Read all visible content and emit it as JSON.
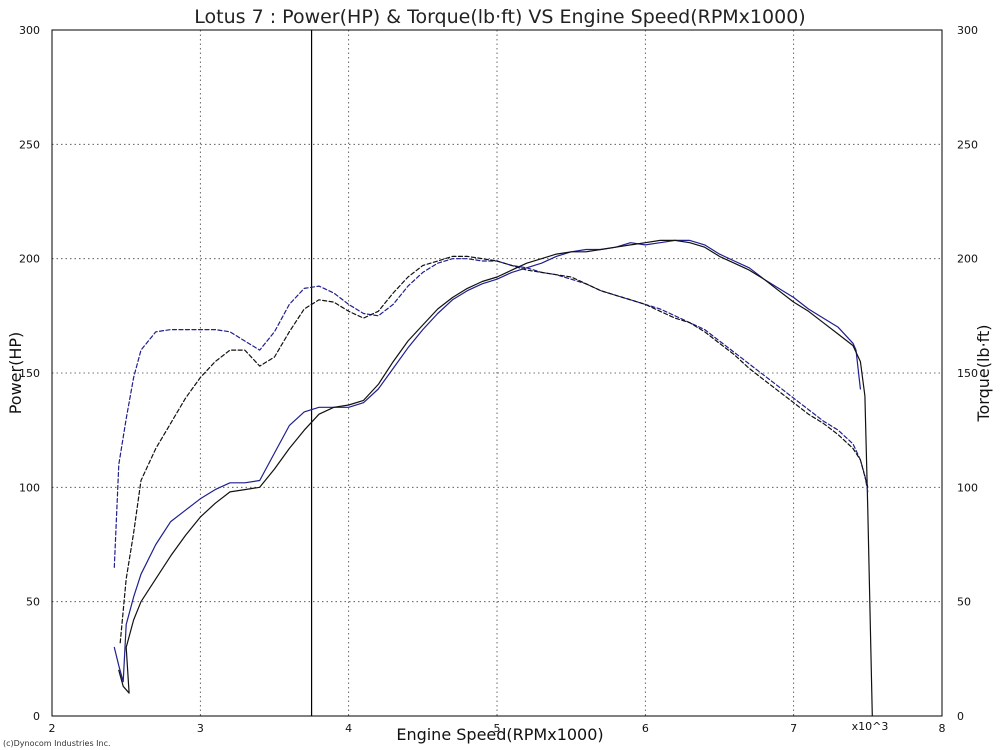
{
  "chart_data": {
    "type": "line",
    "title": "Lotus 7  : Power(HP) & Torque(lb·ft) VS Engine Speed(RPMx1000)",
    "xlabel": "Engine Speed(RPMx1000)",
    "ylabel_left": "Power(HP)",
    "ylabel_right": "Torque(lb·ft)",
    "x_multiplier_label": "x10^3",
    "copyright": "(c)Dynocom Industries Inc.",
    "xlim": [
      2,
      8
    ],
    "ylim": [
      0,
      300
    ],
    "x_ticks": [
      "2",
      "3",
      "4",
      "5",
      "6",
      "7",
      "8"
    ],
    "x_tick_values": [
      2,
      3,
      4,
      5,
      6,
      7,
      8
    ],
    "y_ticks_left": [
      "0",
      "50",
      "100",
      "150",
      "200",
      "250",
      "300"
    ],
    "y_ticks_right": [
      "0",
      "50",
      "100",
      "150",
      "200",
      "250",
      "300"
    ],
    "y_tick_values": [
      0,
      50,
      100,
      150,
      200,
      250,
      300
    ],
    "grid": true,
    "marker_line_x": 3.75,
    "colors": {
      "run1": "#1f1f8f",
      "run2": "#111111",
      "grid": "#444444"
    },
    "series": [
      {
        "quantity": "power",
        "color": "#1f1f8f",
        "style": "solid",
        "points": [
          [
            2.42,
            30
          ],
          [
            2.45,
            22
          ],
          [
            2.48,
            15
          ],
          [
            2.5,
            40
          ],
          [
            2.55,
            52
          ],
          [
            2.6,
            62
          ],
          [
            2.7,
            75
          ],
          [
            2.8,
            85
          ],
          [
            2.9,
            90
          ],
          [
            3.0,
            95
          ],
          [
            3.1,
            99
          ],
          [
            3.2,
            102
          ],
          [
            3.3,
            102
          ],
          [
            3.4,
            103
          ],
          [
            3.5,
            115
          ],
          [
            3.6,
            127
          ],
          [
            3.7,
            133
          ],
          [
            3.8,
            135
          ],
          [
            3.9,
            135
          ],
          [
            4.0,
            135
          ],
          [
            4.1,
            137
          ],
          [
            4.2,
            143
          ],
          [
            4.3,
            152
          ],
          [
            4.4,
            161
          ],
          [
            4.5,
            169
          ],
          [
            4.6,
            176
          ],
          [
            4.7,
            182
          ],
          [
            4.8,
            186
          ],
          [
            4.9,
            189
          ],
          [
            5.0,
            191
          ],
          [
            5.1,
            194
          ],
          [
            5.2,
            196
          ],
          [
            5.3,
            198
          ],
          [
            5.4,
            201
          ],
          [
            5.5,
            203
          ],
          [
            5.6,
            204
          ],
          [
            5.7,
            204
          ],
          [
            5.8,
            205
          ],
          [
            5.9,
            207
          ],
          [
            6.0,
            206
          ],
          [
            6.1,
            207
          ],
          [
            6.2,
            208
          ],
          [
            6.3,
            208
          ],
          [
            6.4,
            206
          ],
          [
            6.5,
            202
          ],
          [
            6.6,
            199
          ],
          [
            6.7,
            196
          ],
          [
            6.8,
            191
          ],
          [
            6.9,
            187
          ],
          [
            7.0,
            183
          ],
          [
            7.1,
            178
          ],
          [
            7.2,
            174
          ],
          [
            7.3,
            170
          ],
          [
            7.4,
            163
          ],
          [
            7.42,
            160
          ],
          [
            7.45,
            143
          ]
        ]
      },
      {
        "quantity": "power",
        "color": "#111111",
        "style": "solid",
        "points": [
          [
            2.45,
            20
          ],
          [
            2.48,
            13
          ],
          [
            2.52,
            10
          ],
          [
            2.5,
            30
          ],
          [
            2.55,
            42
          ],
          [
            2.6,
            50
          ],
          [
            2.7,
            60
          ],
          [
            2.8,
            70
          ],
          [
            2.9,
            79
          ],
          [
            3.0,
            87
          ],
          [
            3.1,
            93
          ],
          [
            3.2,
            98
          ],
          [
            3.3,
            99
          ],
          [
            3.4,
            100
          ],
          [
            3.5,
            108
          ],
          [
            3.6,
            117
          ],
          [
            3.7,
            125
          ],
          [
            3.8,
            132
          ],
          [
            3.9,
            135
          ],
          [
            4.0,
            136
          ],
          [
            4.1,
            138
          ],
          [
            4.2,
            145
          ],
          [
            4.3,
            155
          ],
          [
            4.4,
            164
          ],
          [
            4.5,
            171
          ],
          [
            4.6,
            178
          ],
          [
            4.7,
            183
          ],
          [
            4.8,
            187
          ],
          [
            4.9,
            190
          ],
          [
            5.0,
            192
          ],
          [
            5.1,
            195
          ],
          [
            5.2,
            198
          ],
          [
            5.3,
            200
          ],
          [
            5.4,
            202
          ],
          [
            5.5,
            203
          ],
          [
            5.6,
            203
          ],
          [
            5.7,
            204
          ],
          [
            5.8,
            205
          ],
          [
            5.9,
            206
          ],
          [
            6.0,
            207
          ],
          [
            6.1,
            208
          ],
          [
            6.2,
            208
          ],
          [
            6.3,
            207
          ],
          [
            6.4,
            205
          ],
          [
            6.5,
            201
          ],
          [
            6.6,
            198
          ],
          [
            6.7,
            195
          ],
          [
            6.8,
            191
          ],
          [
            6.9,
            186
          ],
          [
            7.0,
            181
          ],
          [
            7.1,
            177
          ],
          [
            7.2,
            172
          ],
          [
            7.3,
            167
          ],
          [
            7.4,
            162
          ],
          [
            7.45,
            155
          ],
          [
            7.48,
            140
          ],
          [
            7.5,
            90
          ],
          [
            7.52,
            30
          ],
          [
            7.53,
            0
          ]
        ]
      },
      {
        "quantity": "torque",
        "color": "#1f1f8f",
        "style": "dashed",
        "points": [
          [
            2.42,
            65
          ],
          [
            2.45,
            110
          ],
          [
            2.5,
            130
          ],
          [
            2.55,
            148
          ],
          [
            2.6,
            160
          ],
          [
            2.7,
            168
          ],
          [
            2.8,
            169
          ],
          [
            2.9,
            169
          ],
          [
            3.0,
            169
          ],
          [
            3.1,
            169
          ],
          [
            3.2,
            168
          ],
          [
            3.3,
            164
          ],
          [
            3.4,
            160
          ],
          [
            3.5,
            168
          ],
          [
            3.6,
            180
          ],
          [
            3.7,
            187
          ],
          [
            3.8,
            188
          ],
          [
            3.9,
            185
          ],
          [
            4.0,
            180
          ],
          [
            4.1,
            176
          ],
          [
            4.2,
            175
          ],
          [
            4.3,
            180
          ],
          [
            4.4,
            188
          ],
          [
            4.5,
            194
          ],
          [
            4.6,
            198
          ],
          [
            4.7,
            200
          ],
          [
            4.8,
            200
          ],
          [
            4.9,
            199
          ],
          [
            5.0,
            199
          ],
          [
            5.1,
            197
          ],
          [
            5.2,
            196
          ],
          [
            5.3,
            194
          ],
          [
            5.4,
            193
          ],
          [
            5.5,
            191
          ],
          [
            5.6,
            189
          ],
          [
            5.7,
            186
          ],
          [
            5.8,
            184
          ],
          [
            5.9,
            182
          ],
          [
            6.0,
            180
          ],
          [
            6.1,
            178
          ],
          [
            6.2,
            175
          ],
          [
            6.3,
            172
          ],
          [
            6.4,
            169
          ],
          [
            6.5,
            164
          ],
          [
            6.6,
            159
          ],
          [
            6.7,
            154
          ],
          [
            6.8,
            149
          ],
          [
            6.9,
            144
          ],
          [
            7.0,
            139
          ],
          [
            7.1,
            134
          ],
          [
            7.2,
            129
          ],
          [
            7.3,
            125
          ],
          [
            7.4,
            119
          ],
          [
            7.45,
            112
          ],
          [
            7.48,
            105
          ],
          [
            7.5,
            98
          ]
        ]
      },
      {
        "quantity": "torque",
        "color": "#111111",
        "style": "dashed",
        "points": [
          [
            2.46,
            32
          ],
          [
            2.5,
            60
          ],
          [
            2.55,
            80
          ],
          [
            2.6,
            103
          ],
          [
            2.7,
            117
          ],
          [
            2.8,
            128
          ],
          [
            2.9,
            139
          ],
          [
            3.0,
            148
          ],
          [
            3.1,
            155
          ],
          [
            3.2,
            160
          ],
          [
            3.3,
            160
          ],
          [
            3.4,
            153
          ],
          [
            3.5,
            157
          ],
          [
            3.6,
            168
          ],
          [
            3.7,
            178
          ],
          [
            3.8,
            182
          ],
          [
            3.9,
            181
          ],
          [
            4.0,
            177
          ],
          [
            4.1,
            174
          ],
          [
            4.2,
            177
          ],
          [
            4.3,
            185
          ],
          [
            4.4,
            192
          ],
          [
            4.5,
            197
          ],
          [
            4.6,
            199
          ],
          [
            4.7,
            201
          ],
          [
            4.8,
            201
          ],
          [
            4.9,
            200
          ],
          [
            5.0,
            199
          ],
          [
            5.1,
            197
          ],
          [
            5.2,
            195
          ],
          [
            5.3,
            194
          ],
          [
            5.4,
            193
          ],
          [
            5.5,
            192
          ],
          [
            5.6,
            189
          ],
          [
            5.7,
            186
          ],
          [
            5.8,
            184
          ],
          [
            5.9,
            182
          ],
          [
            6.0,
            180
          ],
          [
            6.1,
            177
          ],
          [
            6.2,
            174
          ],
          [
            6.3,
            172
          ],
          [
            6.4,
            168
          ],
          [
            6.5,
            163
          ],
          [
            6.6,
            158
          ],
          [
            6.7,
            152
          ],
          [
            6.8,
            147
          ],
          [
            6.9,
            142
          ],
          [
            7.0,
            137
          ],
          [
            7.1,
            132
          ],
          [
            7.2,
            128
          ],
          [
            7.3,
            123
          ],
          [
            7.4,
            117
          ],
          [
            7.45,
            112
          ],
          [
            7.5,
            100
          ]
        ]
      }
    ]
  }
}
